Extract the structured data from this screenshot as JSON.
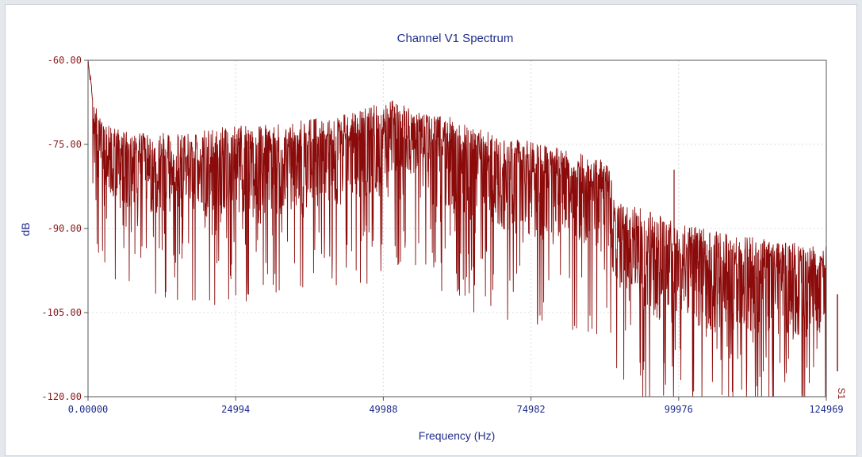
{
  "chart_data": {
    "type": "line",
    "title": "Channel V1 Spectrum",
    "xlabel": "Frequency (Hz)",
    "ylabel": "dB",
    "xlim": [
      0,
      124969
    ],
    "ylim": [
      -120,
      -60
    ],
    "x_ticks": [
      "0.00000",
      "24994",
      "49988",
      "74982",
      "99976",
      "124969"
    ],
    "y_ticks": [
      "-60.00",
      "-75.00",
      "-90.00",
      "-105.00",
      "-120.00"
    ],
    "grid": true,
    "series_color": "#8b0a0a",
    "series": [
      {
        "name": "S1",
        "envelope": {
          "x": [
            0,
            800,
            2000,
            4000,
            6000,
            8000,
            12000,
            17000,
            22000,
            27000,
            32000,
            37000,
            42000,
            45000,
            48000,
            50000,
            52000,
            54000,
            56000,
            58000,
            61000,
            65000,
            69000,
            73000,
            77000,
            81000,
            85000,
            88000,
            89000,
            92000,
            96000,
            100000,
            105000,
            110000,
            115000,
            120000,
            124969
          ],
          "upper": [
            -60,
            -67,
            -70,
            -72,
            -72.5,
            -73,
            -73,
            -73,
            -72,
            -71.5,
            -71,
            -70.5,
            -70,
            -69,
            -68,
            -68,
            -67,
            -68,
            -69,
            -70,
            -70,
            -72,
            -73,
            -74,
            -75,
            -76,
            -77,
            -78,
            -84,
            -86,
            -87,
            -89,
            -90,
            -91,
            -92,
            -92.5,
            -93
          ],
          "lower": [
            -62,
            -72,
            -80,
            -85,
            -87,
            -88,
            -88,
            -88,
            -88,
            -87,
            -86.5,
            -86,
            -85,
            -84.5,
            -84,
            -83,
            -82,
            -81,
            -82,
            -84,
            -87,
            -89,
            -90,
            -91,
            -92,
            -92,
            -93,
            -95,
            -100,
            -104,
            -106,
            -107,
            -108,
            -108,
            -109,
            -109,
            -110
          ]
        }
      }
    ]
  }
}
